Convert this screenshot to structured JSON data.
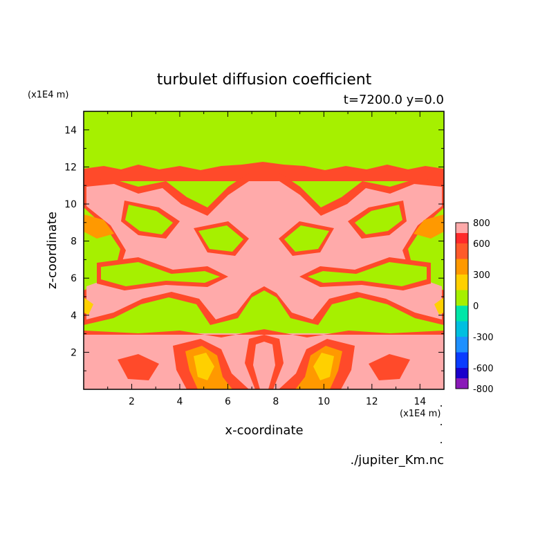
{
  "chart_data": {
    "type": "heatmap",
    "title": "turbulet diffusion coefficient",
    "subtitle": "t=7200.0 y=0.0",
    "xlabel": "x-coordinate",
    "ylabel": "z-coordinate",
    "x_unit": "(x1E4 m)",
    "y_unit": "(x1E4 m)",
    "source": "./jupiter_Km.nc",
    "xlim": [
      0,
      15
    ],
    "ylim": [
      0,
      15
    ],
    "x_ticks": [
      "2",
      "4",
      "6",
      "8",
      "10",
      "12",
      "14"
    ],
    "y_ticks": [
      "2",
      "4",
      "6",
      "8",
      "10",
      "12",
      "14"
    ],
    "colorbar": {
      "range": [
        -800,
        800
      ],
      "tick_labels": [
        "800",
        "600",
        "300",
        "0",
        "-300",
        "-600",
        "-800"
      ],
      "levels": [
        {
          "range": [
            -800,
            -700
          ],
          "color": "#8a1ab8"
        },
        {
          "range": [
            -700,
            -600
          ],
          "color": "#1a00cc"
        },
        {
          "range": [
            -600,
            -450
          ],
          "color": "#0a3cff"
        },
        {
          "range": [
            -450,
            -300
          ],
          "color": "#1e90ff"
        },
        {
          "range": [
            -300,
            -150
          ],
          "color": "#00bfe0"
        },
        {
          "range": [
            -150,
            0
          ],
          "color": "#00e6a8"
        },
        {
          "range": [
            0,
            150
          ],
          "color": "#a6f000"
        },
        {
          "range": [
            150,
            300
          ],
          "color": "#ffd000"
        },
        {
          "range": [
            300,
            450
          ],
          "color": "#ff9900"
        },
        {
          "range": [
            450,
            600
          ],
          "color": "#ff5a2a"
        },
        {
          "range": [
            600,
            700
          ],
          "color": "#ff2a2a"
        },
        {
          "range": [
            700,
            800
          ],
          "color": "#ffaaaa"
        }
      ]
    },
    "field_description_levels": {
      "background": "#a6f000",
      "low_band_fill": "#ffaaaa",
      "outline_high": "#ff4a2a",
      "outline_mid": "#ff9900",
      "outline_low": "#ffd000"
    }
  }
}
